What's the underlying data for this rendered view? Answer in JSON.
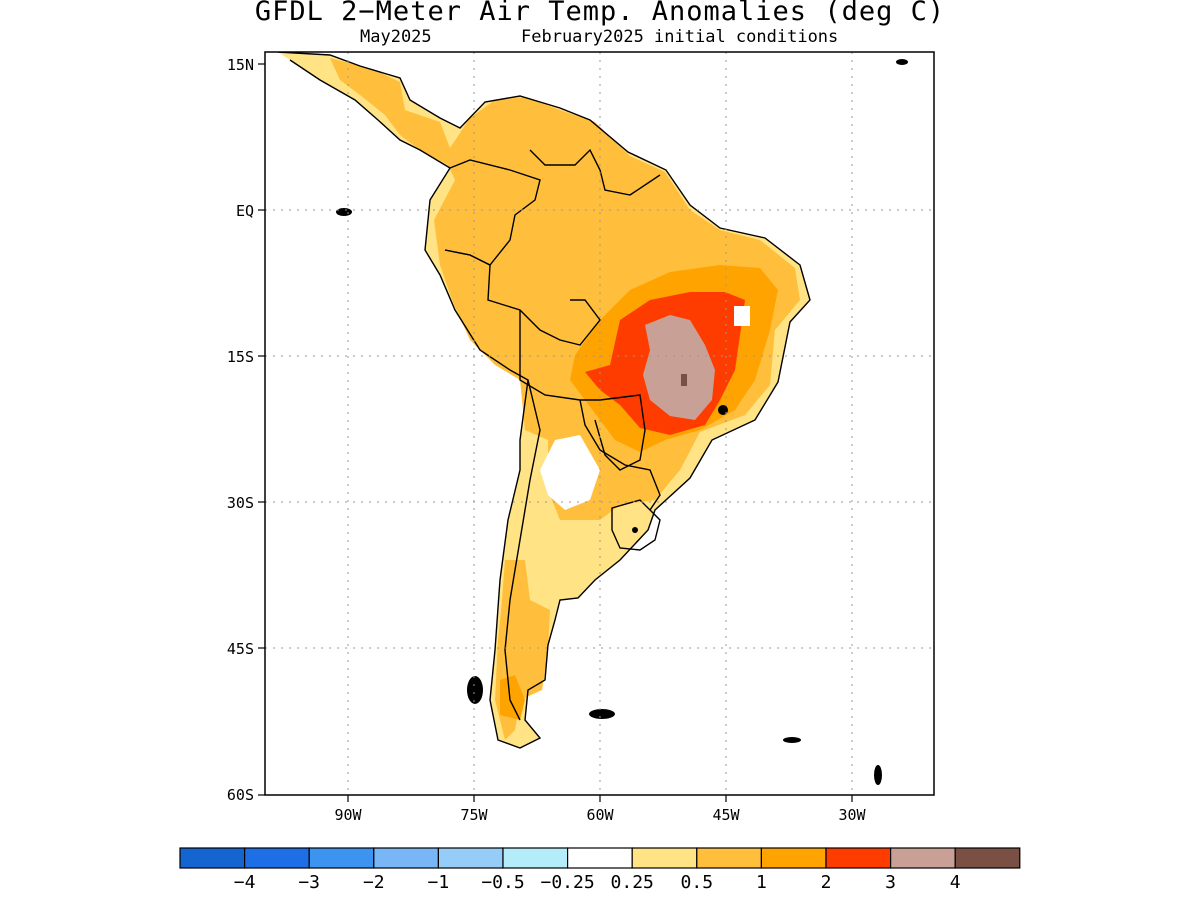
{
  "title": "GFDL 2−Meter Air Temp. Anomalies (deg C)",
  "subtitle_left": "May2025",
  "subtitle_right": "February2025 initial conditions",
  "map": {
    "lat_labels": [
      "15N",
      "EQ",
      "15S",
      "30S",
      "45S",
      "60S"
    ],
    "lon_labels": [
      "90W",
      "75W",
      "60W",
      "45W",
      "30W"
    ],
    "anomaly_colors": {
      "lt_-4": "#1565d0",
      "-4_-3": "#1e6ee6",
      "-3_-2": "#3c93f0",
      "-2_-1": "#78b6f5",
      "-1_-0.5": "#96cdf8",
      "-0.5_-0.25": "#b4ecfa",
      "-0.25_0.25": "#ffffff",
      "0.25_0.5": "#ffe385",
      "0.5_1": "#ffbf3c",
      "1_2": "#ffa300",
      "2_3": "#ff3c00",
      "3_4": "#c8a096",
      "gt_4": "#7a5045"
    }
  },
  "colorbar": {
    "labels": [
      "−4",
      "−3",
      "−2",
      "−1",
      "−0.5",
      "−0.25",
      "0.25",
      "0.5",
      "1",
      "2",
      "3",
      "4"
    ],
    "colors": [
      "#1565d0",
      "#1e6ee6",
      "#3c93f0",
      "#78b6f5",
      "#96cdf8",
      "#b4ecfa",
      "#ffffff",
      "#ffe385",
      "#ffbf3c",
      "#ffa300",
      "#ff3c00",
      "#c8a096",
      "#7a5045"
    ]
  }
}
